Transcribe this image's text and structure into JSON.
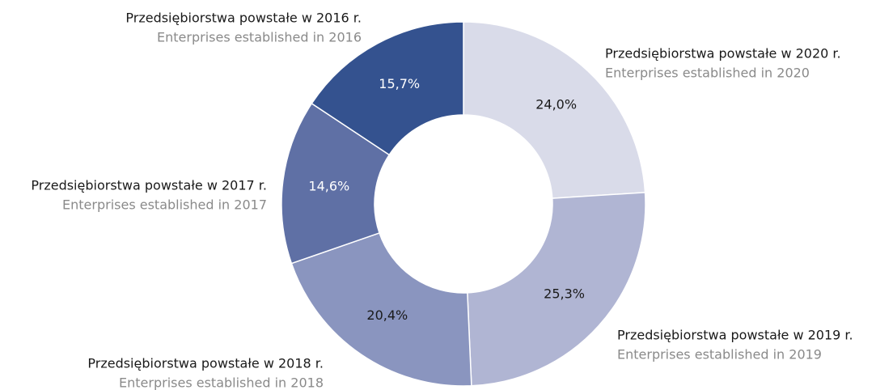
{
  "chart_data": {
    "type": "donut",
    "categories": [
      "Przedsiębiorstwa powstałe w 2020 r.",
      "Przedsiębiorstwa powstałe w 2019 r.",
      "Przedsiębiorstwa powstałe w 2018 r.",
      "Przedsiębiorstwa powstałe w 2017 r.",
      "Przedsiębiorstwa powstałe w 2016 r."
    ],
    "categories_en": [
      "Enterprises established in 2020",
      "Enterprises established in 2019",
      "Enterprises established in 2018",
      "Enterprises established in 2017",
      "Enterprises established in 2016"
    ],
    "values": [
      24.0,
      25.3,
      20.4,
      14.6,
      15.7
    ],
    "value_labels": [
      "24,0%",
      "25,3%",
      "20,4%",
      "14,6%",
      "15,7%"
    ],
    "colors": [
      "#d9dbe9",
      "#b0b5d3",
      "#8a95bf",
      "#5f70a5",
      "#34528f"
    ]
  }
}
